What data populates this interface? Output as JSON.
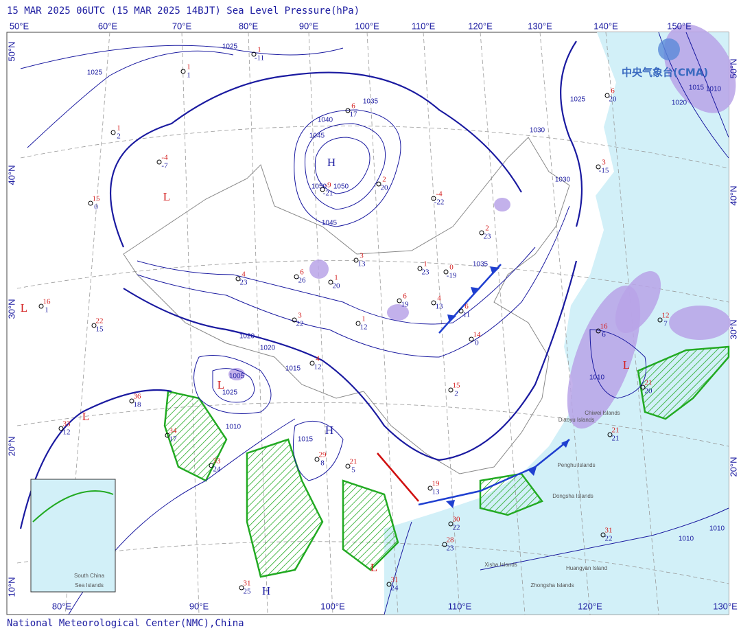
{
  "header": {
    "title": "15 MAR 2025 06UTC  (15 MAR 2025 14BJT) Sea Level Pressure(hPa)"
  },
  "logo": "中央气象台(CMA)",
  "footer": "National Meteorological Center(NMC),China",
  "top_longitudes": [
    "50°E",
    "60°E",
    "70°E",
    "80°E",
    "90°E",
    "100°E",
    "110°E",
    "120°E",
    "130°E",
    "140°E",
    "150°E"
  ],
  "bottom_longitudes": [
    "80°E",
    "90°E",
    "100°E",
    "110°E",
    "120°E",
    "130°E"
  ],
  "left_latitudes": [
    "50°N",
    "40°N",
    "30°N",
    "20°N",
    "10°N"
  ],
  "right_latitudes": [
    "50°N",
    "40°N",
    "30°N",
    "20°N"
  ],
  "pressure_centers": [
    {
      "label": "H",
      "kind": "high"
    },
    {
      "label": "L",
      "kind": "low"
    },
    {
      "label": "L",
      "kind": "low"
    },
    {
      "label": "L",
      "kind": "low"
    },
    {
      "label": "L",
      "kind": "low"
    },
    {
      "label": "H",
      "kind": "high"
    },
    {
      "label": "L",
      "kind": "low"
    },
    {
      "label": "L",
      "kind": "low"
    },
    {
      "label": "H",
      "kind": "high"
    }
  ],
  "isobar_labels": [
    "1025",
    "1025",
    "1035",
    "1040",
    "1045",
    "1050",
    "1050",
    "1045",
    "1030",
    "1030",
    "1035",
    "1020",
    "1020",
    "1015",
    "1005",
    "1025",
    "1010",
    "1015",
    "1010",
    "1010",
    "1010",
    "1015",
    "1020",
    "1025",
    "1010"
  ],
  "place_labels": [
    "Diaoyu Islands",
    "Chiwei Islands",
    "Penghu Islands",
    "Dongsha Islands",
    "Xisha Islands",
    "Huangyan Island",
    "Zhongsha Islands",
    "South China",
    "Sea Islands"
  ],
  "stations": [
    {
      "temp": "6",
      "dew": "17"
    },
    {
      "temp": "-9",
      "dew": "-21"
    },
    {
      "temp": "2",
      "dew": "20"
    },
    {
      "temp": "-4",
      "dew": "-22"
    },
    {
      "temp": "2",
      "dew": "23"
    },
    {
      "temp": "0",
      "dew": "-19"
    },
    {
      "temp": "1",
      "dew": "23"
    },
    {
      "temp": "3",
      "dew": "13"
    },
    {
      "temp": "1",
      "dew": "20"
    },
    {
      "temp": "6",
      "dew": "26"
    },
    {
      "temp": "4",
      "dew": "23"
    },
    {
      "temp": "3",
      "dew": "22"
    },
    {
      "temp": "1",
      "dew": "12"
    },
    {
      "temp": "6",
      "dew": "19"
    },
    {
      "temp": "4",
      "dew": "13"
    },
    {
      "temp": "6",
      "dew": "11"
    },
    {
      "temp": "14",
      "dew": "0"
    },
    {
      "temp": "15",
      "dew": "2"
    },
    {
      "temp": "4",
      "dew": "12"
    },
    {
      "temp": "15",
      "dew": "0"
    },
    {
      "temp": "16",
      "dew": "1"
    },
    {
      "temp": "22",
      "dew": "15"
    },
    {
      "temp": "36",
      "dew": "18"
    },
    {
      "temp": "33",
      "dew": "12"
    },
    {
      "temp": "34",
      "dew": "17"
    },
    {
      "temp": "33",
      "dew": "24"
    },
    {
      "temp": "29",
      "dew": "8"
    },
    {
      "temp": "21",
      "dew": "5"
    },
    {
      "temp": "19",
      "dew": "13"
    },
    {
      "temp": "30",
      "dew": "22"
    },
    {
      "temp": "28",
      "dew": "23"
    },
    {
      "temp": "31",
      "dew": "24"
    },
    {
      "temp": "31",
      "dew": "25"
    },
    {
      "temp": "16",
      "dew": "6"
    },
    {
      "temp": "21",
      "dew": "20"
    },
    {
      "temp": "21",
      "dew": "21"
    },
    {
      "temp": "31",
      "dew": "22"
    },
    {
      "temp": "12",
      "dew": "7"
    },
    {
      "temp": "6",
      "dew": "20"
    },
    {
      "temp": "3",
      "dew": "-15"
    },
    {
      "temp": "-4",
      "dew": "-7"
    },
    {
      "temp": "1",
      "dew": "2"
    },
    {
      "temp": "1",
      "dew": "-11"
    },
    {
      "temp": "1",
      "dew": "1"
    }
  ]
}
